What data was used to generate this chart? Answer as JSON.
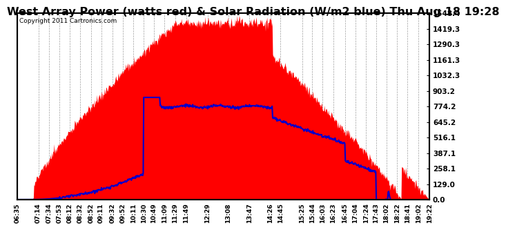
{
  "title": "West Array Power (watts red) & Solar Radiation (W/m2 blue) Thu Aug 18 19:28",
  "copyright": "Copyright 2011 Cartronics.com",
  "bg_color": "#ffffff",
  "plot_bg_color": "#ffffff",
  "grid_color": "#888888",
  "red_color": "#ff0000",
  "blue_color": "#0000cc",
  "title_fontsize": 11.5,
  "ytick_labels": [
    "0.0",
    "129.0",
    "258.1",
    "387.1",
    "516.1",
    "645.2",
    "774.2",
    "903.2",
    "1032.3",
    "1161.3",
    "1290.3",
    "1419.3",
    "1548.4"
  ],
  "ytick_values": [
    0,
    129,
    258.1,
    387.1,
    516.1,
    645.2,
    774.2,
    903.2,
    1032.3,
    1161.3,
    1290.3,
    1419.3,
    1548.4
  ],
  "ymax": 1548.4,
  "ymin": 0,
  "xtick_labels": [
    "06:35",
    "07:14",
    "07:34",
    "07:53",
    "08:12",
    "08:32",
    "08:52",
    "09:11",
    "09:32",
    "09:52",
    "10:11",
    "10:30",
    "10:49",
    "11:09",
    "11:29",
    "11:49",
    "12:29",
    "13:08",
    "13:47",
    "14:26",
    "14:45",
    "15:25",
    "15:44",
    "16:03",
    "16:23",
    "16:45",
    "17:04",
    "17:24",
    "17:43",
    "18:02",
    "18:22",
    "18:41",
    "19:02",
    "19:22"
  ]
}
